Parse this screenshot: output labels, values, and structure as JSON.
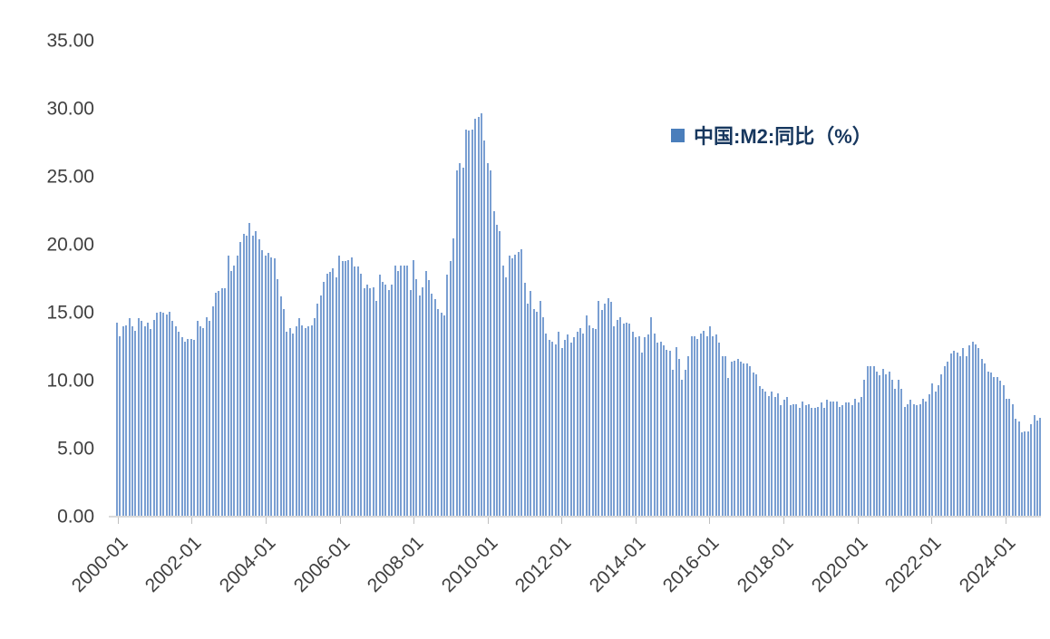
{
  "chart_data": {
    "type": "bar",
    "title": "",
    "legend_label": "中国:M2:同比（%）",
    "bar_color": "#7a9fd2",
    "legend_square_color": "#4a7ebb",
    "axis_text_color": "#3f3f3f",
    "baseline_color": "#d9d9d9",
    "ylabel": "",
    "xlabel": "",
    "ylim": [
      0,
      35
    ],
    "y_step": 5,
    "y_tick_decimals": 2,
    "y_tick_labels": [
      "0.00",
      "5.00",
      "10.00",
      "15.00",
      "20.00",
      "25.00",
      "30.00",
      "35.00"
    ],
    "start_month": "2000-01",
    "x_tick_every_months": 24,
    "x_tick_labels": [
      "2000-01",
      "2002-01",
      "2004-01",
      "2006-01",
      "2008-01",
      "2010-01",
      "2012-01",
      "2014-01",
      "2016-01",
      "2018-01",
      "2020-01",
      "2022-01",
      "2024-01"
    ],
    "legend_position": "inside-top-right",
    "grid": false,
    "series": [
      {
        "name": "中国:M2:同比（%）",
        "values": [
          14.3,
          13.3,
          14.0,
          14.1,
          14.6,
          14.0,
          13.7,
          14.6,
          14.4,
          14.0,
          14.3,
          13.8,
          14.5,
          15.0,
          15.1,
          15.0,
          14.9,
          15.1,
          14.4,
          14.0,
          13.6,
          13.2,
          12.9,
          13.1,
          13.1,
          13.0,
          14.4,
          14.0,
          13.9,
          14.7,
          14.4,
          15.5,
          16.5,
          16.6,
          16.8,
          16.8,
          19.2,
          18.1,
          18.5,
          19.2,
          20.2,
          20.8,
          20.7,
          21.6,
          20.7,
          21.0,
          20.4,
          19.6,
          19.2,
          19.4,
          19.1,
          19.0,
          17.5,
          16.2,
          15.3,
          13.6,
          13.9,
          13.5,
          14.0,
          14.6,
          14.1,
          13.9,
          14.0,
          14.1,
          14.6,
          15.7,
          16.3,
          17.3,
          17.9,
          18.0,
          18.3,
          17.6,
          19.2,
          18.8,
          18.8,
          18.9,
          19.1,
          18.4,
          18.4,
          17.9,
          16.8,
          17.1,
          16.8,
          16.9,
          15.9,
          17.8,
          17.3,
          17.1,
          16.7,
          17.1,
          18.5,
          18.1,
          18.5,
          18.5,
          18.5,
          16.7,
          18.9,
          17.5,
          16.3,
          16.9,
          18.1,
          17.4,
          16.4,
          16.0,
          15.3,
          15.0,
          14.8,
          17.8,
          18.8,
          20.5,
          25.5,
          26.0,
          25.7,
          28.5,
          28.4,
          28.5,
          29.3,
          29.4,
          29.7,
          27.7,
          26.0,
          25.5,
          22.5,
          21.5,
          21.0,
          18.5,
          17.6,
          19.2,
          19.0,
          19.3,
          19.5,
          19.7,
          17.2,
          15.7,
          16.6,
          15.3,
          15.1,
          15.9,
          14.7,
          13.5,
          13.0,
          12.9,
          12.7,
          13.6,
          12.4,
          13.0,
          13.4,
          12.8,
          13.2,
          13.6,
          13.9,
          13.5,
          14.8,
          14.1,
          13.9,
          13.8,
          15.9,
          15.2,
          15.7,
          16.1,
          15.8,
          14.0,
          14.5,
          14.7,
          14.2,
          14.3,
          14.2,
          13.6,
          13.2,
          13.3,
          12.1,
          13.2,
          13.4,
          14.7,
          13.5,
          12.8,
          12.9,
          12.6,
          12.3,
          12.2,
          10.8,
          12.5,
          11.6,
          10.1,
          10.8,
          11.8,
          13.3,
          13.3,
          13.1,
          13.5,
          13.7,
          13.3,
          14.0,
          13.3,
          13.4,
          12.8,
          11.8,
          11.8,
          10.2,
          11.4,
          11.5,
          11.6,
          11.4,
          11.3,
          11.3,
          11.1,
          10.6,
          10.5,
          9.6,
          9.4,
          9.2,
          8.9,
          9.2,
          8.8,
          9.1,
          8.2,
          8.6,
          8.8,
          8.2,
          8.3,
          8.3,
          8.0,
          8.5,
          8.2,
          8.3,
          8.0,
          8.0,
          8.1,
          8.4,
          8.0,
          8.6,
          8.5,
          8.5,
          8.5,
          8.1,
          8.2,
          8.4,
          8.4,
          8.2,
          8.7,
          8.4,
          8.8,
          10.1,
          11.1,
          11.1,
          11.1,
          10.7,
          10.4,
          10.9,
          10.5,
          10.7,
          10.1,
          9.4,
          10.1,
          9.4,
          8.1,
          8.3,
          8.6,
          8.3,
          8.2,
          8.3,
          8.7,
          8.5,
          9.0,
          9.8,
          9.2,
          9.7,
          10.5,
          11.1,
          11.4,
          12.0,
          12.2,
          12.1,
          11.8,
          12.4,
          11.8,
          12.6,
          12.9,
          12.7,
          12.4,
          11.6,
          11.3,
          10.7,
          10.6,
          10.3,
          10.3,
          10.0,
          9.7,
          8.7,
          8.7,
          8.3,
          7.2,
          7.0,
          6.2,
          6.3,
          6.3,
          6.8,
          7.5,
          7.1,
          7.3
        ]
      }
    ]
  }
}
